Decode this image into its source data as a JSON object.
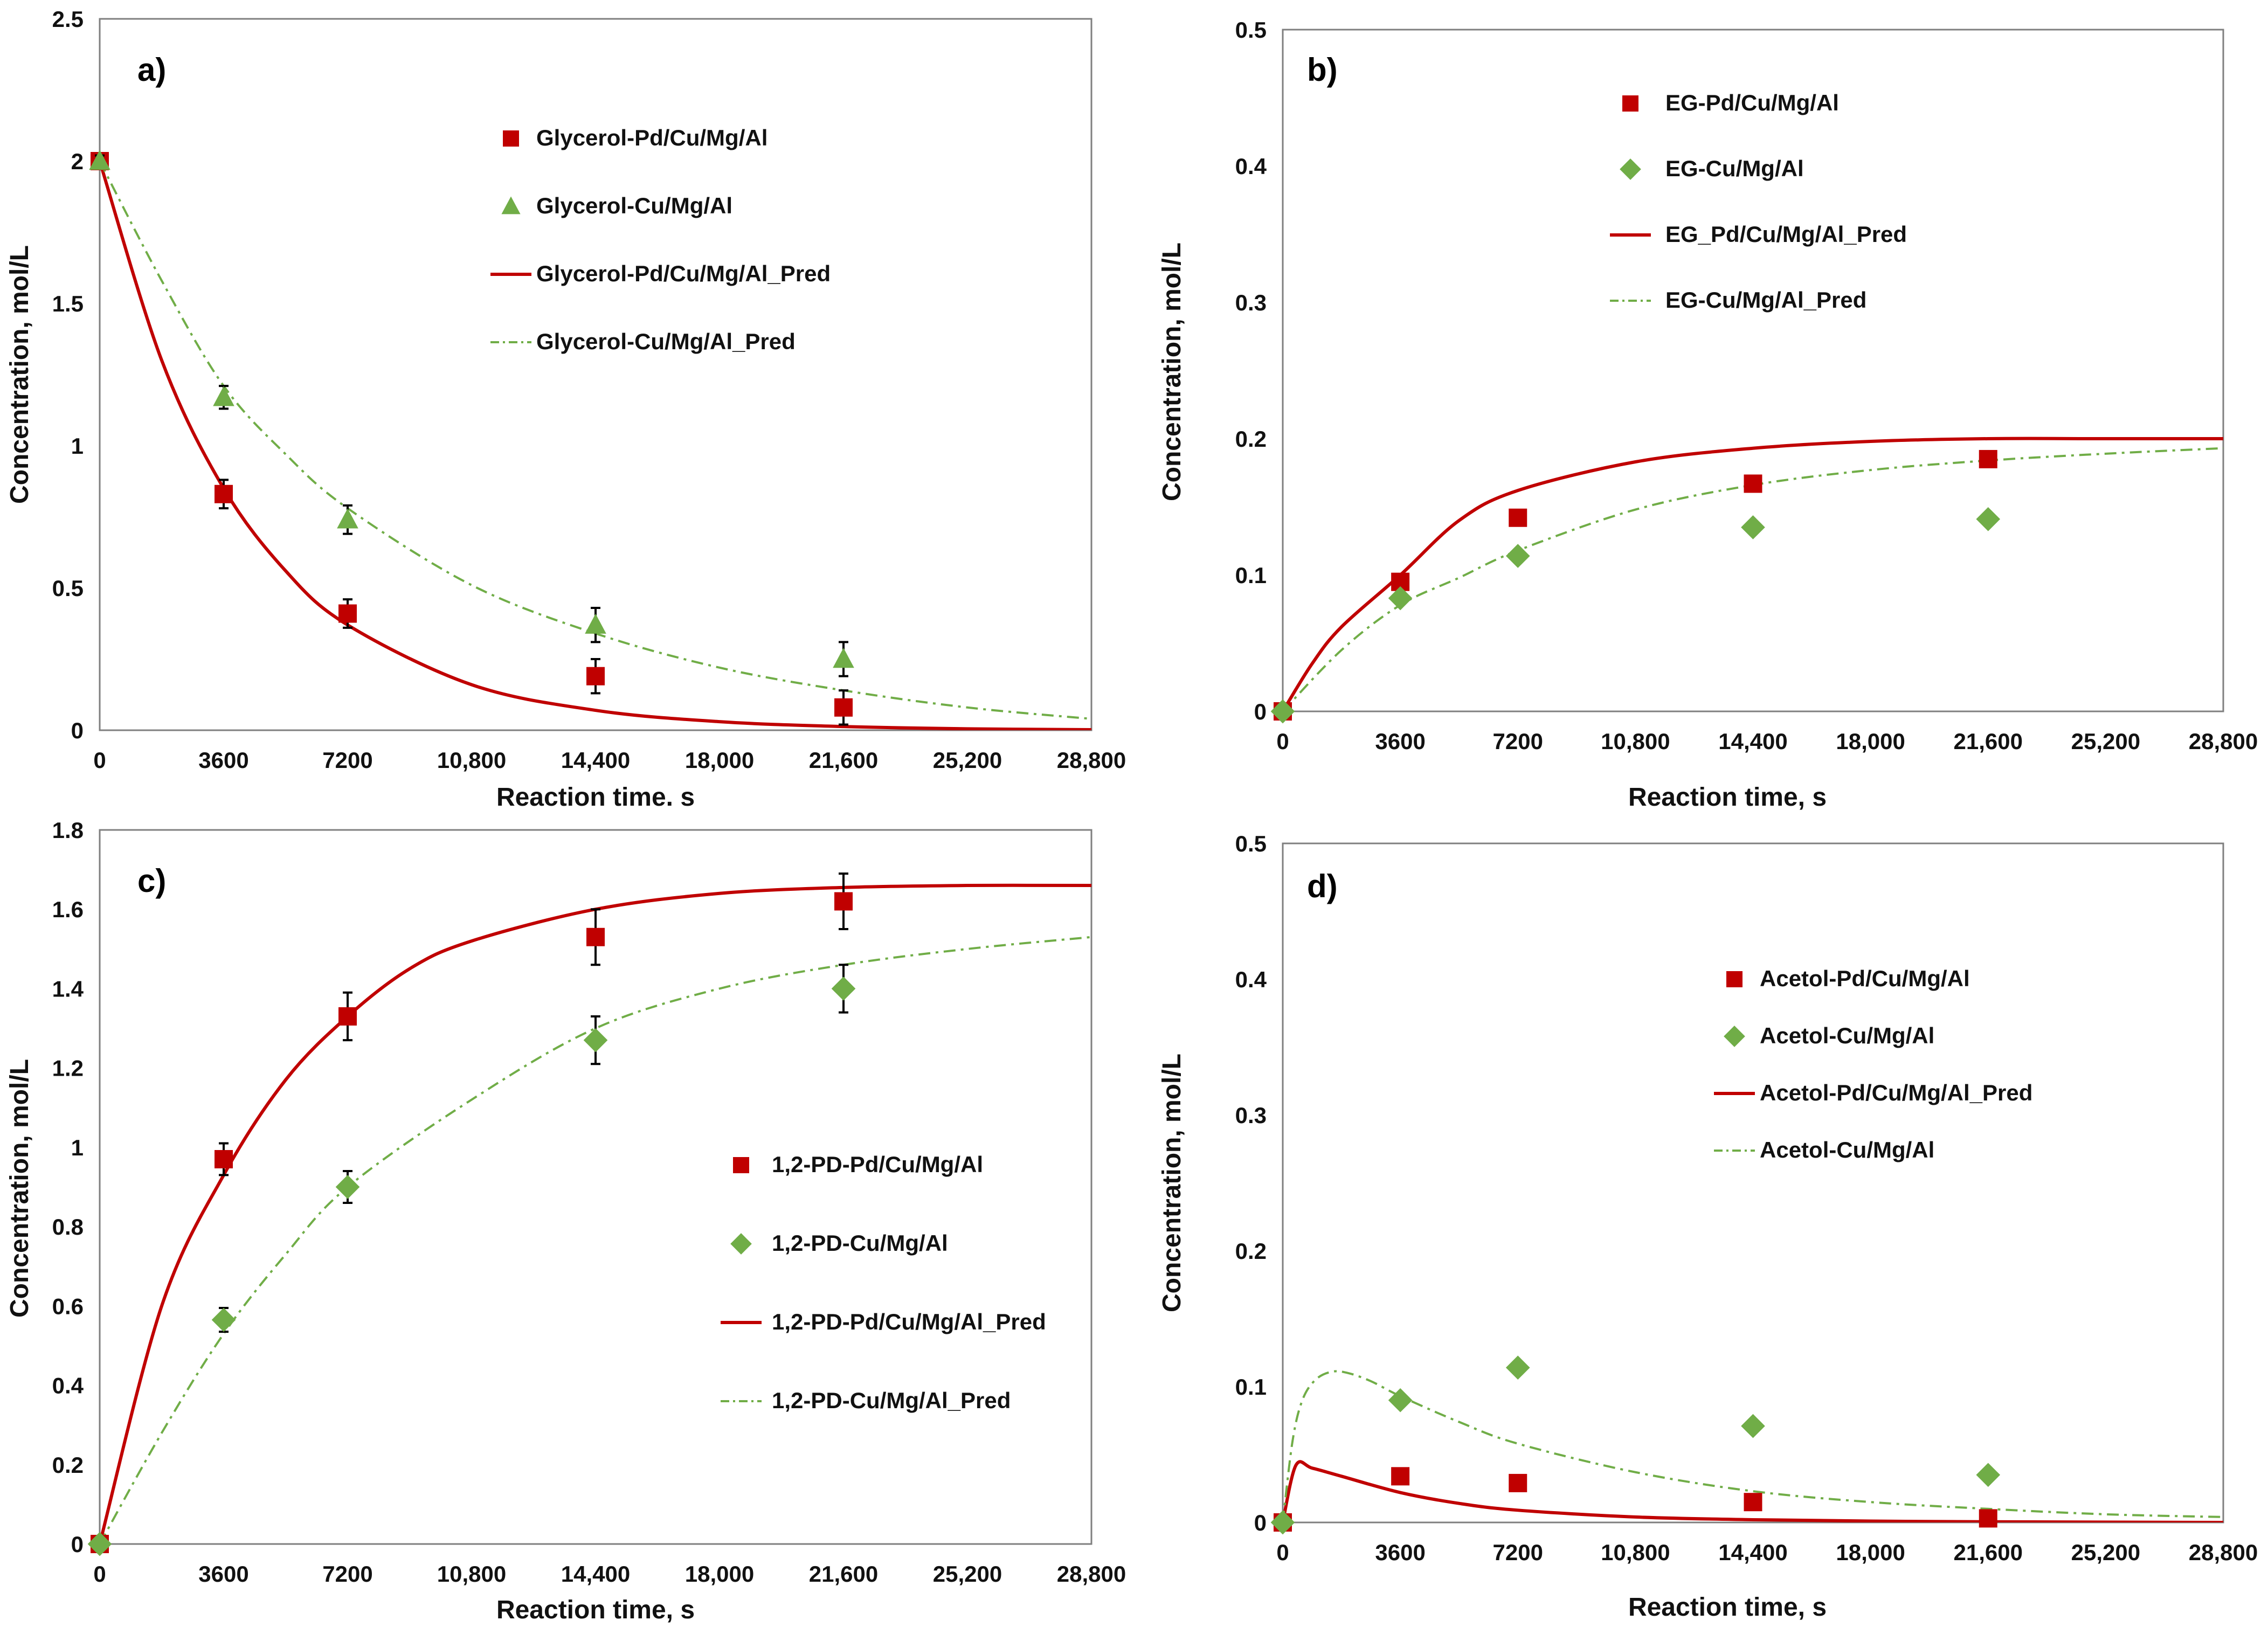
{
  "chart_data": [
    {
      "panel": "a)",
      "type": "scatter",
      "xlabel": "Reaction time. s",
      "ylabel": "Concentration, mol/L",
      "xlim": [
        0,
        28800
      ],
      "ylim": [
        0,
        2.5
      ],
      "xticks": [
        0,
        3600,
        7200,
        10800,
        14400,
        18000,
        21600,
        25200,
        28800
      ],
      "xtick_labels": [
        "0",
        "3600",
        "7200",
        "10,800",
        "14,400",
        "18,000",
        "21,600",
        "25,200",
        "28,800"
      ],
      "yticks": [
        0,
        0.5,
        1,
        1.5,
        2,
        2.5
      ],
      "ytick_labels": [
        "0",
        "0.5",
        "1",
        "1.5",
        "2",
        "2.5"
      ],
      "legend_position": "top-center",
      "series": [
        {
          "name": "Glycerol-Pd/Cu/Mg/Al",
          "kind": "points",
          "marker": "square",
          "color": "#c00000",
          "x": [
            0,
            3600,
            7200,
            14400,
            21600
          ],
          "y": [
            2.0,
            0.83,
            0.41,
            0.19,
            0.08
          ],
          "err": [
            0.02,
            0.05,
            0.05,
            0.06,
            0.06
          ]
        },
        {
          "name": "Glycerol-Cu/Mg/Al",
          "kind": "points",
          "marker": "triangle",
          "color": "#70ad47",
          "x": [
            0,
            3600,
            7200,
            14400,
            21600
          ],
          "y": [
            2.0,
            1.17,
            0.74,
            0.37,
            0.25
          ],
          "err": [
            0.02,
            0.04,
            0.05,
            0.06,
            0.06
          ]
        },
        {
          "name": "Glycerol-Pd/Cu/Mg/Al_Pred",
          "kind": "line",
          "style": "solid",
          "color": "#c00000",
          "x": [
            0,
            1800,
            3600,
            5400,
            7200,
            10800,
            14400,
            18000,
            21600,
            25200,
            28800
          ],
          "y": [
            2.0,
            1.3,
            0.85,
            0.56,
            0.37,
            0.16,
            0.07,
            0.03,
            0.013,
            0.005,
            0.002
          ]
        },
        {
          "name": "Glycerol-Cu/Mg/Al_Pred",
          "kind": "line",
          "style": "dashdot",
          "color": "#70ad47",
          "x": [
            0,
            1800,
            3600,
            5400,
            7200,
            10800,
            14400,
            18000,
            21600,
            25200,
            28800
          ],
          "y": [
            2.0,
            1.58,
            1.21,
            0.97,
            0.78,
            0.51,
            0.34,
            0.22,
            0.14,
            0.08,
            0.04
          ]
        }
      ]
    },
    {
      "panel": "b)",
      "type": "scatter",
      "xlabel": "Reaction time, s",
      "ylabel": "Concentration, mol/L",
      "xlim": [
        0,
        28800
      ],
      "ylim": [
        0,
        0.5
      ],
      "xticks": [
        0,
        3600,
        7200,
        10800,
        14400,
        18000,
        21600,
        25200,
        28800
      ],
      "xtick_labels": [
        "0",
        "3600",
        "7200",
        "10,800",
        "14,400",
        "18,000",
        "21,600",
        "25,200",
        "28,800"
      ],
      "yticks": [
        0,
        0.1,
        0.2,
        0.3,
        0.4,
        0.5
      ],
      "ytick_labels": [
        "0",
        "0.1",
        "0.2",
        "0.3",
        "0.4",
        "0.5"
      ],
      "legend_position": "top-center",
      "series": [
        {
          "name": "EG-Pd/Cu/Mg/Al",
          "kind": "points",
          "marker": "square",
          "color": "#c00000",
          "x": [
            0,
            3600,
            7200,
            14400,
            21600
          ],
          "y": [
            0.0,
            0.095,
            0.142,
            0.167,
            0.185
          ]
        },
        {
          "name": "EG-Cu/Mg/Al",
          "kind": "points",
          "marker": "diamond",
          "color": "#70ad47",
          "x": [
            0,
            3600,
            7200,
            14400,
            21600
          ],
          "y": [
            0.0,
            0.083,
            0.114,
            0.135,
            0.141
          ]
        },
        {
          "name": "EG_Pd/Cu/Mg/Al_Pred",
          "kind": "line",
          "style": "solid",
          "color": "#c00000",
          "x": [
            0,
            900,
            1800,
            3600,
            5400,
            7200,
            10800,
            14400,
            18000,
            21600,
            25200,
            28800
          ],
          "y": [
            0.0,
            0.035,
            0.062,
            0.1,
            0.14,
            0.162,
            0.183,
            0.193,
            0.198,
            0.2,
            0.2,
            0.2
          ]
        },
        {
          "name": "EG-Cu/Mg/Al_Pred",
          "kind": "line",
          "style": "dashdot",
          "color": "#70ad47",
          "x": [
            0,
            1800,
            3600,
            5400,
            7200,
            10800,
            14400,
            18000,
            21600,
            25200,
            28800
          ],
          "y": [
            0.0,
            0.045,
            0.078,
            0.098,
            0.118,
            0.148,
            0.166,
            0.177,
            0.184,
            0.189,
            0.193
          ]
        }
      ]
    },
    {
      "panel": "c)",
      "type": "scatter",
      "xlabel": "Reaction time, s",
      "ylabel": "Concentration, mol/L",
      "xlim": [
        0,
        28800
      ],
      "ylim": [
        0,
        1.8
      ],
      "xticks": [
        0,
        3600,
        7200,
        10800,
        14400,
        18000,
        21600,
        25200,
        28800
      ],
      "xtick_labels": [
        "0",
        "3600",
        "7200",
        "10,800",
        "14,400",
        "18,000",
        "21,600",
        "25,200",
        "28,800"
      ],
      "yticks": [
        0,
        0.2,
        0.4,
        0.6,
        0.8,
        1,
        1.2,
        1.4,
        1.6,
        1.8
      ],
      "ytick_labels": [
        "0",
        "0.2",
        "0.4",
        "0.6",
        "0.8",
        "1",
        "1.2",
        "1.4",
        "1.6",
        "1.8"
      ],
      "legend_position": "bottom-center",
      "series": [
        {
          "name": "1,2-PD-Pd/Cu/Mg/Al",
          "kind": "points",
          "marker": "square",
          "color": "#c00000",
          "x": [
            0,
            3600,
            7200,
            14400,
            21600
          ],
          "y": [
            0.0,
            0.97,
            1.33,
            1.53,
            1.62
          ],
          "err": [
            0.0,
            0.04,
            0.06,
            0.07,
            0.07
          ]
        },
        {
          "name": "1,2-PD-Cu/Mg/Al",
          "kind": "points",
          "marker": "diamond",
          "color": "#70ad47",
          "x": [
            0,
            3600,
            7200,
            14400,
            21600
          ],
          "y": [
            0.0,
            0.565,
            0.9,
            1.27,
            1.4
          ],
          "err": [
            0.0,
            0.03,
            0.04,
            0.06,
            0.06
          ]
        },
        {
          "name": "1,2-PD-Pd/Cu/Mg/Al_Pred",
          "kind": "line",
          "style": "solid",
          "color": "#c00000",
          "x": [
            0,
            1800,
            3600,
            5400,
            7200,
            9000,
            10800,
            14400,
            18000,
            21600,
            25200,
            28800
          ],
          "y": [
            0.0,
            0.6,
            0.93,
            1.17,
            1.33,
            1.45,
            1.52,
            1.6,
            1.64,
            1.655,
            1.66,
            1.66
          ]
        },
        {
          "name": "1,2-PD-Cu/Mg/Al_Pred",
          "kind": "line",
          "style": "dashdot",
          "color": "#70ad47",
          "x": [
            0,
            1800,
            3600,
            5400,
            7200,
            10800,
            14400,
            18000,
            21600,
            25200,
            28800
          ],
          "y": [
            0.0,
            0.28,
            0.53,
            0.73,
            0.9,
            1.12,
            1.3,
            1.4,
            1.46,
            1.5,
            1.53
          ]
        }
      ]
    },
    {
      "panel": "d)",
      "type": "scatter",
      "xlabel": "Reaction time, s",
      "ylabel": "Concentration, mol/L",
      "xlim": [
        0,
        28800
      ],
      "ylim": [
        0,
        0.5
      ],
      "xticks": [
        0,
        3600,
        7200,
        10800,
        14400,
        18000,
        21600,
        25200,
        28800
      ],
      "xtick_labels": [
        "0",
        "3600",
        "7200",
        "10,800",
        "14,400",
        "18,000",
        "21,600",
        "25,200",
        "28,800"
      ],
      "yticks": [
        0,
        0.1,
        0.2,
        0.3,
        0.4,
        0.5
      ],
      "ytick_labels": [
        "0",
        "0.1",
        "0.2",
        "0.3",
        "0.4",
        "0.5"
      ],
      "legend_position": "center",
      "series": [
        {
          "name": "Acetol-Pd/Cu/Mg/Al",
          "kind": "points",
          "marker": "square",
          "color": "#c00000",
          "x": [
            0,
            3600,
            7200,
            14400,
            21600
          ],
          "y": [
            0.0,
            0.034,
            0.029,
            0.015,
            0.003
          ]
        },
        {
          "name": "Acetol-Cu/Mg/Al",
          "kind": "points",
          "marker": "diamond",
          "color": "#70ad47",
          "x": [
            0,
            3600,
            7200,
            14400,
            21600
          ],
          "y": [
            0.0,
            0.09,
            0.114,
            0.071,
            0.035
          ]
        },
        {
          "name": "Acetol-Pd/Cu/Mg/Al_Pred",
          "kind": "line",
          "style": "solid",
          "color": "#c00000",
          "x": [
            0,
            400,
            900,
            1800,
            3600,
            5400,
            7200,
            10800,
            14400,
            18000,
            21600,
            28800
          ],
          "y": [
            0.0,
            0.042,
            0.04,
            0.034,
            0.022,
            0.014,
            0.009,
            0.004,
            0.002,
            0.001,
            0.0005,
            0.0
          ]
        },
        {
          "name": "Acetol-Cu/Mg/Al",
          "kind": "line",
          "style": "dashdot",
          "color": "#70ad47",
          "x": [
            0,
            300,
            600,
            1000,
            1500,
            2000,
            2700,
            3600,
            5400,
            7200,
            10800,
            14400,
            18000,
            21600,
            25200,
            28800
          ],
          "y": [
            0.0,
            0.06,
            0.09,
            0.105,
            0.111,
            0.11,
            0.104,
            0.093,
            0.074,
            0.058,
            0.037,
            0.023,
            0.015,
            0.01,
            0.006,
            0.004
          ]
        }
      ]
    }
  ]
}
